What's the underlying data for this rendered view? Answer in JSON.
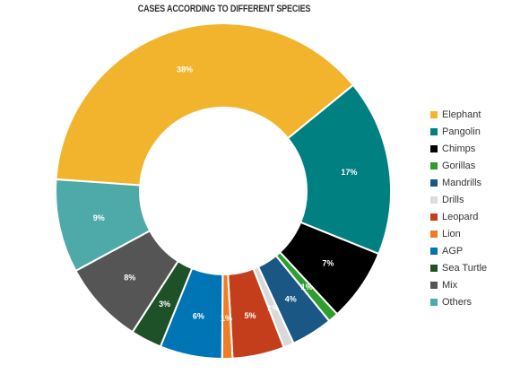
{
  "chart_data": {
    "type": "pie",
    "variant": "donut",
    "title": "CASES ACCORDING TO DIFFERENT SPECIES",
    "legend_position": "right",
    "categories": [
      "Elephant",
      "Pangolin",
      "Chimps",
      "Gorillas",
      "Mandrills",
      "Drills",
      "Leopard",
      "Lion",
      "AGP",
      "Sea Turtle",
      "Mix",
      "Others"
    ],
    "values": [
      38,
      17,
      7,
      1,
      4,
      1,
      5,
      1,
      6,
      3,
      8,
      9
    ],
    "data_labels": [
      "38%",
      "17%",
      "7%",
      "1%",
      "4%",
      "1%",
      "5%",
      "1%",
      "6%",
      "3%",
      "8%",
      "9%"
    ],
    "colors": [
      "#F2B42C",
      "#008080",
      "#000000",
      "#2E9E2E",
      "#1A5785",
      "#D9D9D9",
      "#C43E1B",
      "#EE7D24",
      "#0075B6",
      "#1E5128",
      "#555555",
      "#4DAAA8"
    ],
    "label_colors": [
      "#ffffff",
      "#ffffff",
      "#ffffff",
      "#ffffff",
      "#ffffff",
      "#ffffff",
      "#ffffff",
      "#ffffff",
      "#ffffff",
      "#ffffff",
      "#ffffff",
      "#ffffff"
    ]
  }
}
